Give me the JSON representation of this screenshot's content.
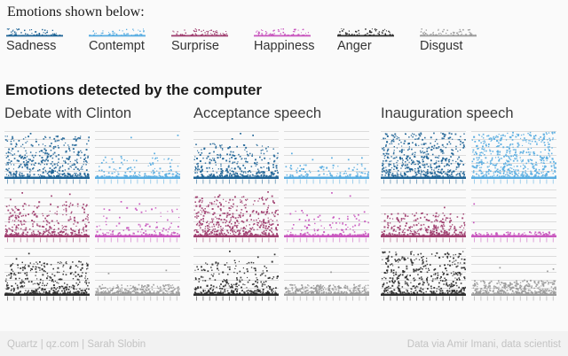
{
  "legend": {
    "heading": "Emotions shown below:",
    "items": [
      {
        "label": "Sadness",
        "color": "#1f6496"
      },
      {
        "label": "Contempt",
        "color": "#58ade1"
      },
      {
        "label": "Surprise",
        "color": "#9e3d6e"
      },
      {
        "label": "Happiness",
        "color": "#c857be"
      },
      {
        "label": "Anger",
        "color": "#2e2e2e"
      },
      {
        "label": "Disgust",
        "color": "#9b9b9b"
      }
    ]
  },
  "title": "Emotions detected by the computer",
  "chart_data": {
    "type": "scatter",
    "description": "Small-multiple strip plots of emotion intensity over time detected by a computer in three Trump speeches. Each panel: x = time through speech, y = detected intensity; points pile up along a dense baseline with sporadic spikes. No numeric axis labels are shown; distributions are characterized by point_count, vertical_spread (fraction of panel height reached) and bottom_bias (larger = more bottom-heavy). Explicit notable outliers given as [x_frac, y_frac].",
    "grid": "on (horizontal gridlines only)",
    "legend_position": "top",
    "groups": [
      {
        "label": "Debate with Clinton",
        "panels": [
          {
            "emotion": "Sadness",
            "color": "#1f6496",
            "point_count": 400,
            "vertical_spread": 0.92,
            "bottom_bias": 1.7,
            "outliers": [
              [
                0.3,
                0.97
              ]
            ]
          },
          {
            "emotion": "Contempt",
            "color": "#58ade1",
            "point_count": 150,
            "vertical_spread": 0.45,
            "bottom_bias": 2.8,
            "outliers": [
              [
                0.42,
                0.88
              ],
              [
                0.98,
                0.93
              ],
              [
                0.7,
                0.52
              ],
              [
                0.3,
                0.45
              ]
            ]
          },
          {
            "emotion": "Surprise",
            "color": "#9e3d6e",
            "point_count": 300,
            "vertical_spread": 0.75,
            "bottom_bias": 2.2,
            "outliers": [
              [
                0.2,
                0.95
              ],
              [
                0.55,
                0.88
              ],
              [
                0.77,
                0.92
              ],
              [
                0.06,
                0.8
              ]
            ]
          },
          {
            "emotion": "Happiness",
            "color": "#c857be",
            "point_count": 110,
            "vertical_spread": 0.62,
            "bottom_bias": 3.0,
            "outliers": [
              [
                0.3,
                0.75
              ],
              [
                0.52,
                0.7
              ]
            ]
          },
          {
            "emotion": "Anger",
            "color": "#2e2e2e",
            "point_count": 360,
            "vertical_spread": 0.72,
            "bottom_bias": 2.0,
            "outliers": [
              [
                0.28,
                0.9
              ],
              [
                0.13,
                0.78
              ],
              [
                0.88,
                0.72
              ]
            ]
          },
          {
            "emotion": "Disgust",
            "color": "#9b9b9b",
            "point_count": 260,
            "vertical_spread": 0.2,
            "bottom_bias": 1.8,
            "outliers": [
              [
                0.84,
                0.52
              ],
              [
                0.15,
                0.45
              ]
            ]
          }
        ]
      },
      {
        "label": "Acceptance speech",
        "panels": [
          {
            "emotion": "Sadness",
            "color": "#1f6496",
            "point_count": 340,
            "vertical_spread": 0.75,
            "bottom_bias": 2.0,
            "outliers": [
              [
                0.55,
                0.97
              ],
              [
                0.7,
                0.93
              ],
              [
                0.45,
                0.85
              ]
            ]
          },
          {
            "emotion": "Contempt",
            "color": "#58ade1",
            "point_count": 100,
            "vertical_spread": 0.28,
            "bottom_bias": 2.5,
            "outliers": [
              [
                0.08,
                0.52
              ],
              [
                0.33,
                0.38
              ],
              [
                0.56,
                0.42
              ],
              [
                0.76,
                0.38
              ],
              [
                0.92,
                0.42
              ]
            ]
          },
          {
            "emotion": "Surprise",
            "color": "#9e3d6e",
            "point_count": 430,
            "vertical_spread": 0.88,
            "bottom_bias": 1.8,
            "outliers": [
              [
                0.88,
                0.97
              ],
              [
                0.3,
                0.9
              ]
            ]
          },
          {
            "emotion": "Happiness",
            "color": "#c857be",
            "point_count": 120,
            "vertical_spread": 0.55,
            "bottom_bias": 3.0,
            "outliers": [
              [
                0.56,
                0.95
              ],
              [
                0.78,
                0.88
              ],
              [
                0.95,
                0.52
              ],
              [
                0.2,
                0.55
              ]
            ]
          },
          {
            "emotion": "Anger",
            "color": "#2e2e2e",
            "point_count": 300,
            "vertical_spread": 0.75,
            "bottom_bias": 2.3,
            "outliers": [
              [
                0.42,
                0.95
              ],
              [
                0.76,
                0.82
              ],
              [
                0.96,
                0.88
              ]
            ]
          },
          {
            "emotion": "Disgust",
            "color": "#9b9b9b",
            "point_count": 260,
            "vertical_spread": 0.2,
            "bottom_bias": 1.8,
            "outliers": [
              [
                0.55,
                0.48
              ]
            ]
          }
        ]
      },
      {
        "label": "Inauguration speech",
        "panels": [
          {
            "emotion": "Sadness",
            "color": "#1f6496",
            "point_count": 500,
            "vertical_spread": 1.0,
            "bottom_bias": 1.45,
            "outliers": []
          },
          {
            "emotion": "Contempt",
            "color": "#58ade1",
            "point_count": 500,
            "vertical_spread": 1.0,
            "bottom_bias": 1.45,
            "outliers": []
          },
          {
            "emotion": "Surprise",
            "color": "#9e3d6e",
            "point_count": 280,
            "vertical_spread": 0.5,
            "bottom_bias": 2.0,
            "outliers": [
              [
                0.75,
                0.62
              ]
            ]
          },
          {
            "emotion": "Happiness",
            "color": "#c857be",
            "point_count": 60,
            "vertical_spread": 0.07,
            "bottom_bias": 1.5,
            "outliers": [
              [
                0.02,
                0.7
              ],
              [
                0.015,
                0.28
              ]
            ]
          },
          {
            "emotion": "Anger",
            "color": "#2e2e2e",
            "point_count": 440,
            "vertical_spread": 0.95,
            "bottom_bias": 1.6,
            "outliers": []
          },
          {
            "emotion": "Disgust",
            "color": "#9b9b9b",
            "point_count": 330,
            "vertical_spread": 0.3,
            "bottom_bias": 1.9,
            "outliers": [
              [
                0.33,
                0.58
              ],
              [
                0.9,
                0.5
              ],
              [
                0.97,
                0.55
              ]
            ]
          }
        ]
      }
    ]
  },
  "footer": {
    "left": "Quartz | qz.com | Sarah Slobin",
    "right": "Data via Amir Imani, data scientist"
  },
  "colors": {
    "background": "#fafafa",
    "gridline": "#dcdcdc",
    "footer_bar": "#f2f2f2",
    "footer_text": "#c3c3c3"
  }
}
